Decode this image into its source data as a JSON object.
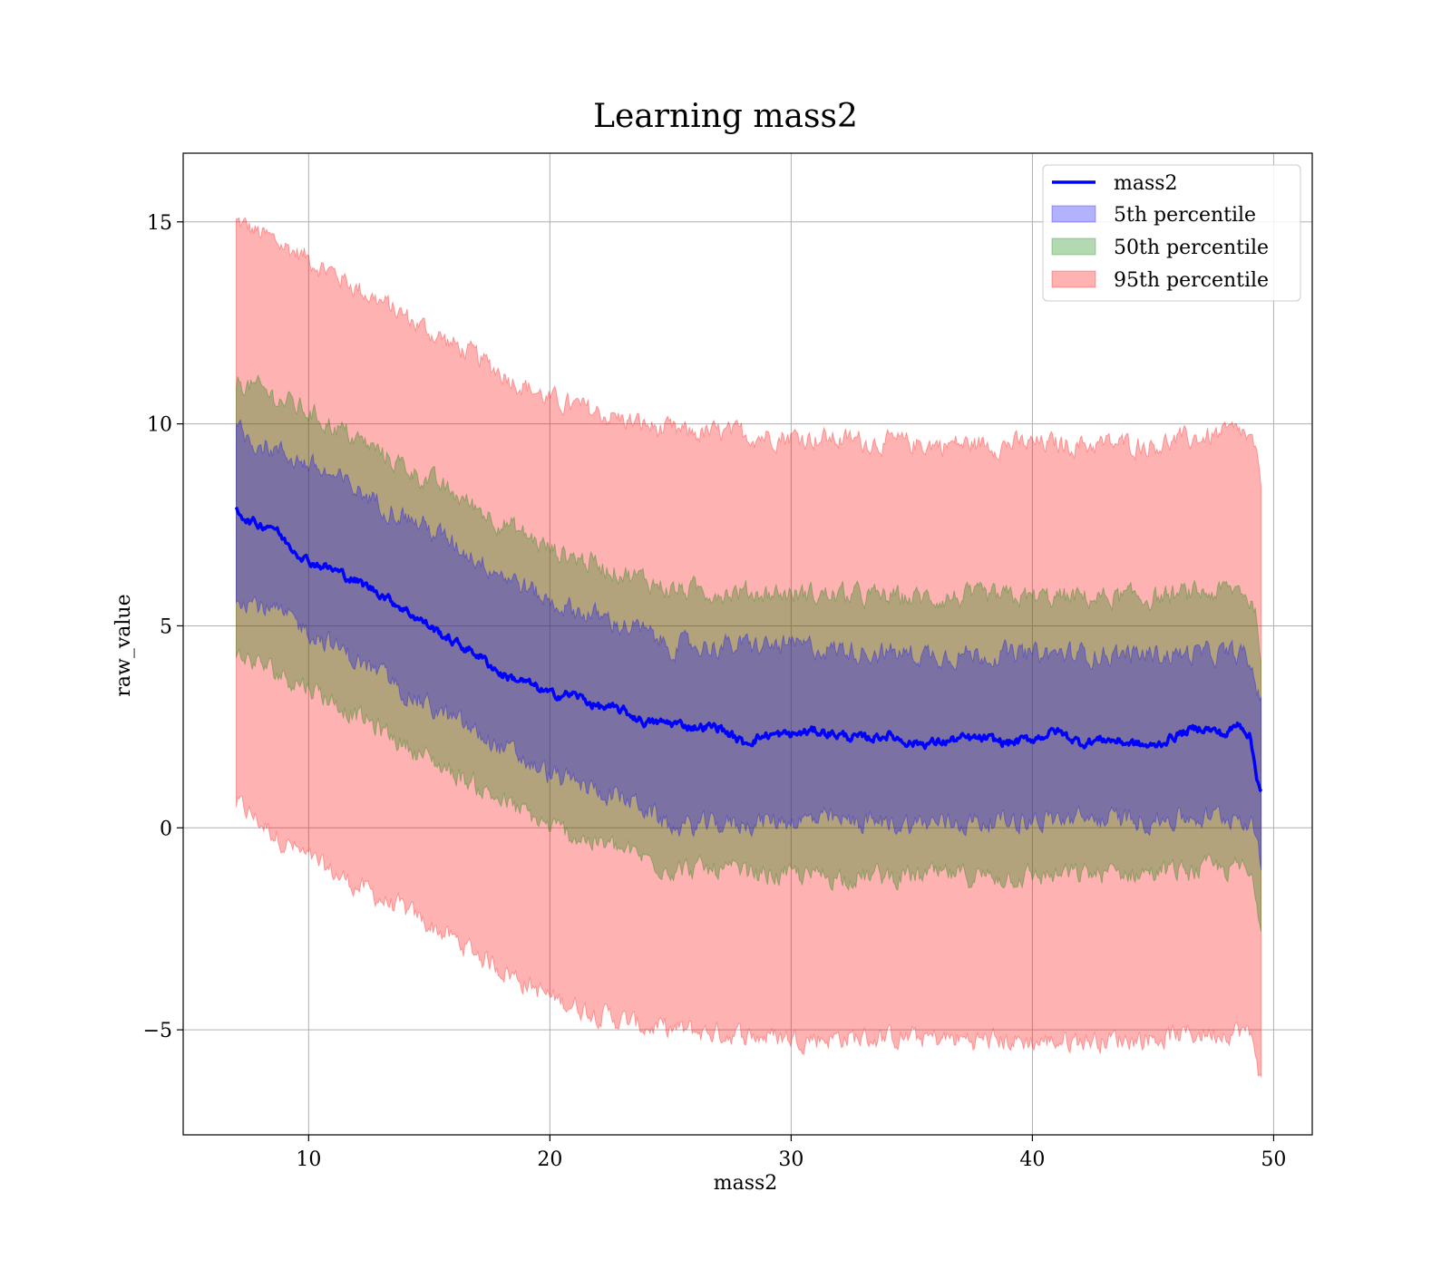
{
  "chart_data": {
    "type": "area",
    "title": "Learning mass2",
    "xlabel": "mass2",
    "ylabel": "raw_value",
    "xlim": [
      4.8,
      51.6
    ],
    "ylim": [
      -7.6,
      16.7
    ],
    "x_ticks": [
      10,
      20,
      30,
      40,
      50
    ],
    "x_tick_labels": [
      "10",
      "20",
      "30",
      "40",
      "50"
    ],
    "y_ticks": [
      -5,
      0,
      5,
      10,
      15
    ],
    "y_tick_labels": [
      "−5",
      "0",
      "5",
      "10",
      "15"
    ],
    "grid": true,
    "legend_position": "top-right",
    "line": {
      "name": "mass2",
      "color": "#0000ff",
      "x": [
        7.0,
        7.5,
        8.0,
        8.5,
        9.0,
        10.0,
        11.0,
        12.0,
        13.0,
        14.0,
        15.0,
        16.0,
        17.0,
        18.0,
        19.0,
        20.0,
        21.0,
        22.0,
        23.0,
        24.0,
        25.0,
        26.0,
        27.0,
        28.0,
        29.0,
        30.0,
        31.0,
        32.0,
        33.0,
        34.0,
        35.0,
        36.0,
        37.0,
        38.0,
        39.0,
        40.0,
        41.0,
        42.0,
        43.0,
        44.0,
        45.0,
        46.0,
        47.0,
        48.0,
        48.6,
        49.0,
        49.3,
        49.5
      ],
      "y": [
        7.9,
        7.6,
        7.5,
        7.5,
        7.1,
        6.6,
        6.4,
        6.1,
        5.8,
        5.4,
        5.0,
        4.6,
        4.3,
        3.8,
        3.6,
        3.3,
        3.3,
        3.0,
        2.9,
        2.6,
        2.6,
        2.5,
        2.5,
        2.1,
        2.3,
        2.3,
        2.4,
        2.3,
        2.2,
        2.3,
        2.1,
        2.1,
        2.2,
        2.2,
        2.1,
        2.2,
        2.4,
        2.1,
        2.2,
        2.1,
        2.0,
        2.3,
        2.5,
        2.3,
        2.6,
        2.3,
        1.3,
        0.9
      ]
    },
    "series": [
      {
        "name": "5th percentile",
        "color": "#0000ff",
        "x": [
          7.0,
          10.0,
          15.0,
          20.0,
          23.7,
          25.0,
          30.0,
          35.0,
          40.0,
          45.0,
          48.7,
          49.2,
          49.5
        ],
        "upper": [
          9.8,
          9.0,
          7.4,
          5.6,
          4.9,
          4.5,
          4.5,
          4.3,
          4.3,
          4.3,
          4.3,
          3.8,
          3.0
        ],
        "lower": [
          5.8,
          4.9,
          3.0,
          1.3,
          0.6,
          0.0,
          0.2,
          0.1,
          0.2,
          0.2,
          0.3,
          0.0,
          -1.2
        ]
      },
      {
        "name": "50th percentile",
        "color": "#008000",
        "x": [
          7.0,
          10.0,
          15.0,
          20.0,
          23.7,
          25.0,
          30.0,
          35.0,
          40.0,
          45.0,
          48.7,
          49.2,
          49.5
        ],
        "upper": [
          11.1,
          10.3,
          8.6,
          6.9,
          6.2,
          5.9,
          5.8,
          5.7,
          5.7,
          5.7,
          5.9,
          5.5,
          4.3
        ],
        "lower": [
          4.3,
          3.5,
          1.7,
          0.0,
          -0.7,
          -1.0,
          -1.2,
          -1.2,
          -1.2,
          -1.1,
          -1.0,
          -1.4,
          -2.5
        ]
      },
      {
        "name": "95th percentile",
        "color": "#ff0000",
        "x": [
          7.0,
          10.0,
          15.0,
          20.0,
          23.7,
          25.0,
          30.0,
          35.0,
          40.0,
          45.0,
          48.7,
          49.2,
          49.5
        ],
        "upper": [
          15.0,
          14.1,
          12.3,
          10.6,
          10.0,
          9.8,
          9.7,
          9.5,
          9.5,
          9.5,
          9.8,
          9.4,
          8.3
        ],
        "lower": [
          0.6,
          -0.8,
          -2.4,
          -4.2,
          -4.9,
          -5.0,
          -5.2,
          -5.2,
          -5.3,
          -5.2,
          -5.0,
          -5.3,
          -6.4
        ]
      }
    ]
  }
}
